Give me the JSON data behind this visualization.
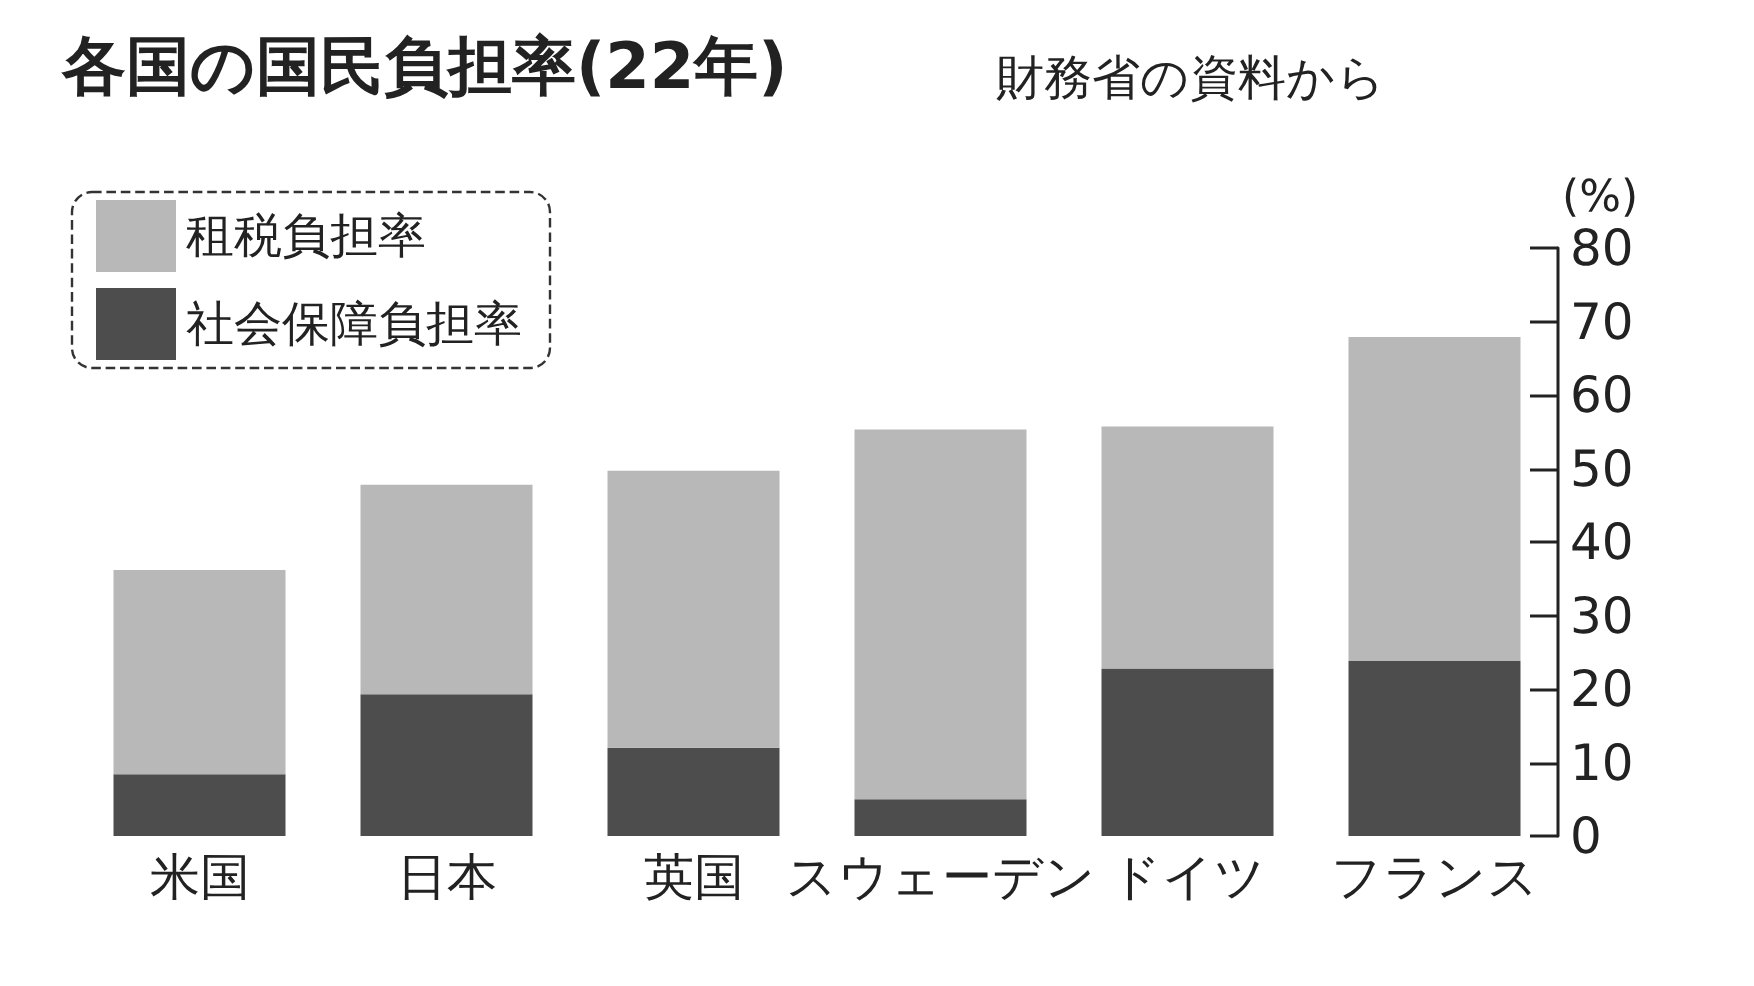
{
  "chart_data": {
    "type": "bar",
    "title": "各国の国民負担率(22年)",
    "subtitle": "財務省の資料から",
    "ylabel": "(%)",
    "categories": [
      "米国",
      "日本",
      "英国",
      "スウェーデン",
      "ドイツ",
      "フランス"
    ],
    "stacked": true,
    "series": [
      {
        "name": "社会保障負担率",
        "color": "#4d4d4d",
        "values": [
          8.4,
          19.3,
          12.0,
          5.0,
          22.8,
          23.8
        ]
      },
      {
        "name": "租税負担率",
        "color": "#b8b8b8",
        "values": [
          27.8,
          28.5,
          37.7,
          50.3,
          32.9,
          44.1
        ]
      }
    ],
    "ylim": [
      0,
      80
    ],
    "yticks": [
      0,
      10,
      20,
      30,
      40,
      50,
      60,
      70,
      80
    ],
    "grid": false,
    "legend": "top left"
  }
}
